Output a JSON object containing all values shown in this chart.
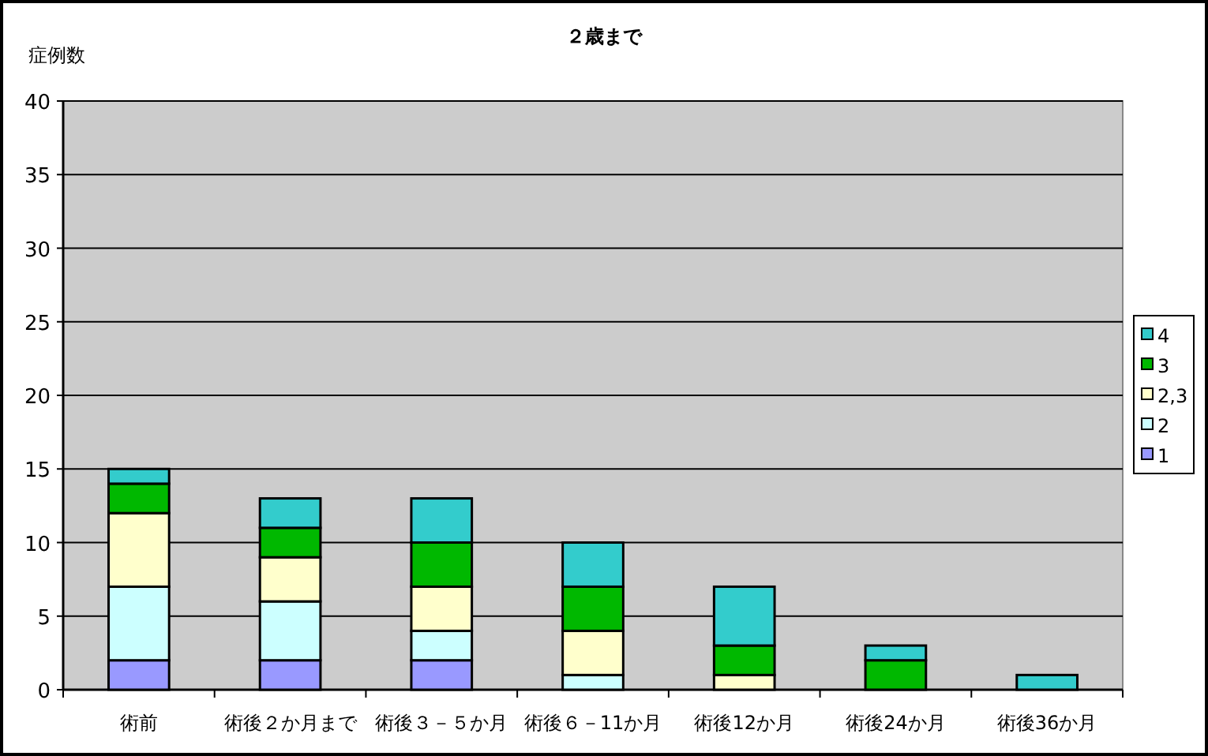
{
  "chart_data": {
    "type": "bar",
    "stacked": true,
    "title": "２歳まで",
    "ylabel": "症例数",
    "categories": [
      "術前",
      "術後２か月まで",
      "術後３－５か月",
      "術後６－11か月",
      "術後12か月",
      "術後24か月",
      "術後36か月"
    ],
    "series": [
      {
        "name": "1",
        "color": "#9999ff",
        "values": [
          2,
          2,
          2,
          0,
          0,
          0,
          0
        ]
      },
      {
        "name": "2",
        "color": "#ccffff",
        "values": [
          5,
          4,
          2,
          1,
          0,
          0,
          0
        ]
      },
      {
        "name": "2,3",
        "color": "#ffffcc",
        "values": [
          5,
          3,
          3,
          3,
          1,
          0,
          0
        ]
      },
      {
        "name": "3",
        "color": "#00b800",
        "values": [
          2,
          2,
          3,
          3,
          2,
          2,
          0
        ]
      },
      {
        "name": "4",
        "color": "#33cccc",
        "values": [
          1,
          2,
          3,
          3,
          4,
          1,
          1
        ]
      }
    ],
    "ylim": [
      0,
      40
    ],
    "yticks": [
      0,
      5,
      10,
      15,
      20,
      25,
      30,
      35,
      40
    ],
    "grid": "y",
    "legend": "right"
  }
}
